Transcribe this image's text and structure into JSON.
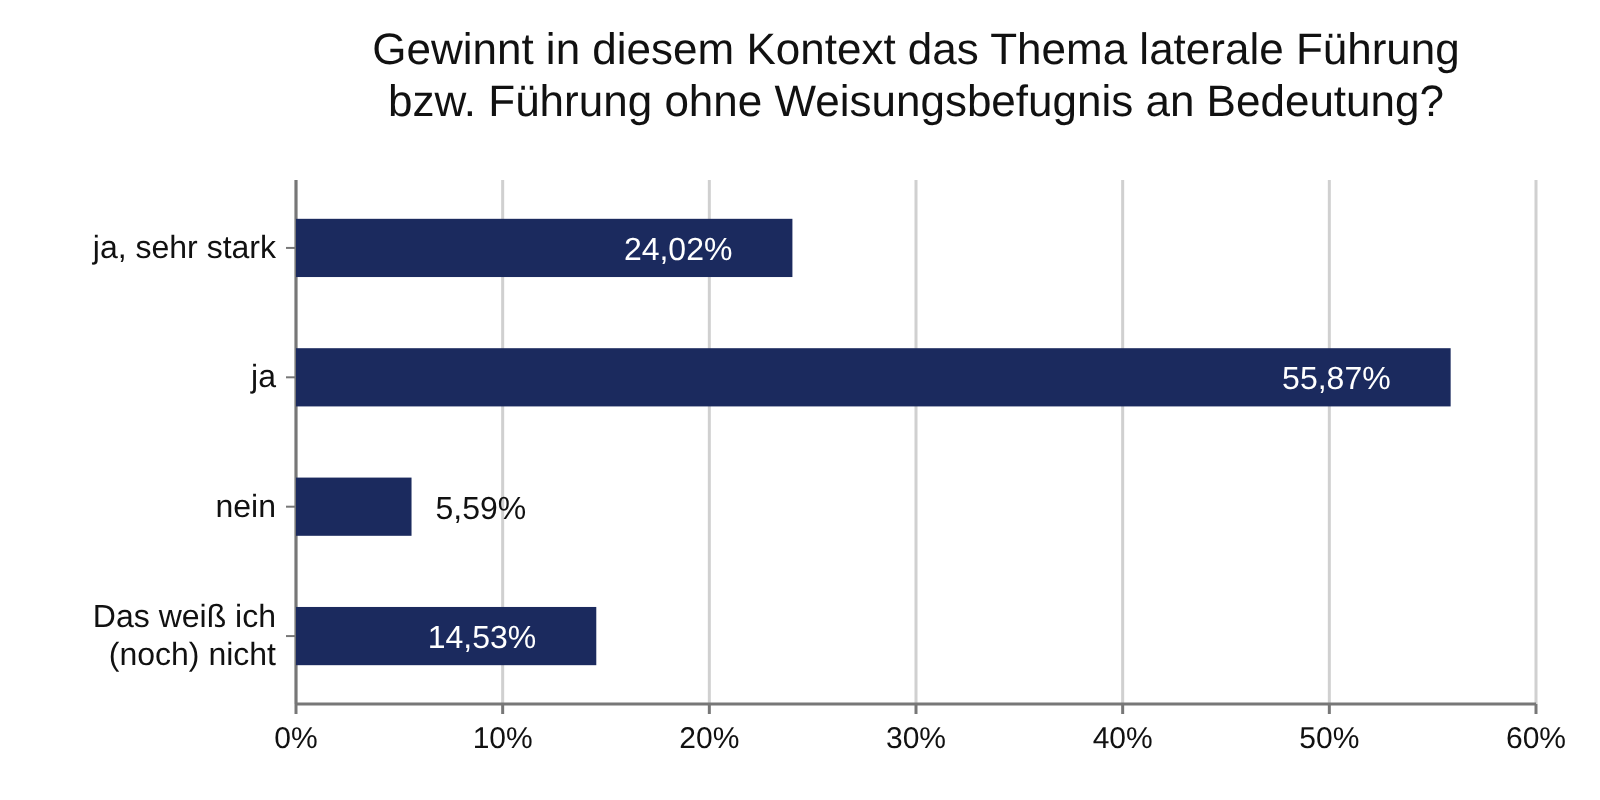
{
  "chart_data": {
    "type": "bar",
    "orientation": "horizontal",
    "title": "Gewinnt in diesem Kontext das Thema laterale Führung bzw. Führung ohne Weisungsbefugnis an Bedeutung?",
    "categories": [
      "ja, sehr stark",
      "ja",
      "nein",
      "Das weiß ich (noch) nicht"
    ],
    "values": [
      24.02,
      55.87,
      5.59,
      14.53
    ],
    "value_labels": [
      "24,02%",
      "55,87%",
      "5,59%",
      "14,53%"
    ],
    "color": "#1b2a5e",
    "xlim": [
      0,
      60
    ],
    "xticks": [
      {
        "value": 0,
        "label": "0%"
      },
      {
        "value": 10,
        "label": "10%"
      },
      {
        "value": 20,
        "label": "20%"
      },
      {
        "value": 30,
        "label": "30%"
      },
      {
        "value": 40,
        "label": "40%"
      },
      {
        "value": 50,
        "label": "50%"
      },
      {
        "value": 60,
        "label": "60%"
      }
    ],
    "grid": "x"
  }
}
